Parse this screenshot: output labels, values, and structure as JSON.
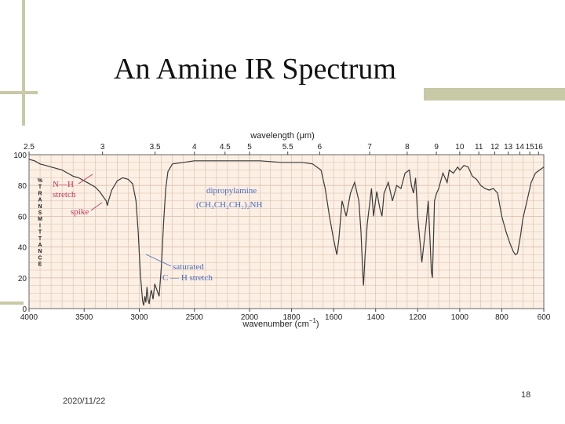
{
  "slide": {
    "title": "An Amine IR Spectrum",
    "date": "2020/11/22",
    "page_number": "18"
  },
  "colors": {
    "background": "#ffffff",
    "decoration": "#c8c9a6",
    "plot_background": "#fcefe4",
    "grid": "#d8bfae",
    "spectrum": "#3a3a3a",
    "annotation_pink": "#c0345a",
    "annotation_blue": "#4b6bbf"
  },
  "chart_data": {
    "type": "line",
    "title": "",
    "xlabel": "wavenumber (cm",
    "xlabel_superscript": "−1",
    "xlabel_close": ")",
    "top_axis_label": "wavelength (μm)",
    "ylabel": "%TRANSMITTANCE",
    "ylim": [
      0,
      100
    ],
    "xlim": [
      4000,
      600
    ],
    "x_scale": "IR split scale (compressed below 2000 cm-1)",
    "grid": true,
    "x_ticks": [
      4000,
      3500,
      3000,
      2500,
      2000,
      1800,
      1600,
      1400,
      1200,
      1000,
      800,
      600
    ],
    "x_tick_labels": [
      "4000",
      "3500",
      "3000",
      "2500",
      "2000",
      "1800",
      "1600",
      "1400",
      "1200",
      "1000",
      "800",
      "600"
    ],
    "y_ticks": [
      0,
      20,
      40,
      60,
      80,
      100
    ],
    "y_tick_labels": [
      "0",
      "20",
      "40",
      "60",
      "80",
      "100"
    ],
    "top_ticks_um": [
      2.5,
      3,
      3.5,
      4,
      4.5,
      5,
      5.5,
      6,
      7,
      8,
      9,
      10,
      11,
      12,
      13,
      14,
      15,
      16
    ],
    "top_tick_labels": [
      "2.5",
      "3",
      "3.5",
      "4",
      "4.5",
      "5",
      "5.5",
      "6",
      "7",
      "8",
      "9",
      "10",
      "11",
      "12",
      "13",
      "14",
      "15",
      "16"
    ],
    "series": [
      {
        "points": [
          [
            4000,
            97
          ],
          [
            3950,
            96
          ],
          [
            3900,
            94
          ],
          [
            3850,
            93
          ],
          [
            3800,
            92
          ],
          [
            3750,
            91
          ],
          [
            3700,
            90
          ],
          [
            3650,
            88
          ],
          [
            3600,
            86
          ],
          [
            3550,
            85
          ],
          [
            3500,
            83
          ],
          [
            3450,
            81
          ],
          [
            3400,
            79
          ],
          [
            3360,
            76
          ],
          [
            3330,
            73
          ],
          [
            3300,
            70
          ],
          [
            3290,
            67
          ],
          [
            3280,
            70
          ],
          [
            3250,
            77
          ],
          [
            3200,
            83
          ],
          [
            3150,
            85
          ],
          [
            3100,
            84
          ],
          [
            3060,
            81
          ],
          [
            3030,
            70
          ],
          [
            3010,
            50
          ],
          [
            2990,
            22
          ],
          [
            2970,
            5
          ],
          [
            2960,
            2
          ],
          [
            2950,
            8
          ],
          [
            2940,
            4
          ],
          [
            2930,
            14
          ],
          [
            2920,
            6
          ],
          [
            2910,
            3
          ],
          [
            2900,
            9
          ],
          [
            2890,
            12
          ],
          [
            2875,
            6
          ],
          [
            2860,
            16
          ],
          [
            2840,
            12
          ],
          [
            2820,
            8
          ],
          [
            2800,
            27
          ],
          [
            2780,
            55
          ],
          [
            2760,
            78
          ],
          [
            2740,
            89
          ],
          [
            2700,
            94
          ],
          [
            2600,
            95
          ],
          [
            2500,
            96
          ],
          [
            2400,
            96
          ],
          [
            2300,
            96
          ],
          [
            2200,
            96
          ],
          [
            2100,
            96
          ],
          [
            2000,
            96
          ],
          [
            1950,
            96
          ],
          [
            1900,
            95.5
          ],
          [
            1850,
            95
          ],
          [
            1800,
            95
          ],
          [
            1750,
            95
          ],
          [
            1700,
            94
          ],
          [
            1660,
            90
          ],
          [
            1640,
            78
          ],
          [
            1620,
            60
          ],
          [
            1600,
            45
          ],
          [
            1585,
            35
          ],
          [
            1575,
            45
          ],
          [
            1560,
            70
          ],
          [
            1540,
            60
          ],
          [
            1520,
            75
          ],
          [
            1500,
            82
          ],
          [
            1480,
            70
          ],
          [
            1470,
            50
          ],
          [
            1462,
            25
          ],
          [
            1458,
            15
          ],
          [
            1450,
            35
          ],
          [
            1440,
            55
          ],
          [
            1420,
            78
          ],
          [
            1410,
            60
          ],
          [
            1395,
            76
          ],
          [
            1380,
            65
          ],
          [
            1370,
            60
          ],
          [
            1360,
            75
          ],
          [
            1340,
            82
          ],
          [
            1320,
            70
          ],
          [
            1300,
            80
          ],
          [
            1280,
            78
          ],
          [
            1260,
            88
          ],
          [
            1240,
            90
          ],
          [
            1230,
            80
          ],
          [
            1220,
            75
          ],
          [
            1210,
            85
          ],
          [
            1200,
            60
          ],
          [
            1180,
            30
          ],
          [
            1160,
            55
          ],
          [
            1150,
            70
          ],
          [
            1140,
            40
          ],
          [
            1135,
            24
          ],
          [
            1130,
            20
          ],
          [
            1125,
            45
          ],
          [
            1120,
            70
          ],
          [
            1110,
            75
          ],
          [
            1100,
            78
          ],
          [
            1080,
            88
          ],
          [
            1060,
            82
          ],
          [
            1050,
            90
          ],
          [
            1030,
            88
          ],
          [
            1010,
            92
          ],
          [
            1000,
            90
          ],
          [
            980,
            93
          ],
          [
            960,
            92
          ],
          [
            940,
            86
          ],
          [
            920,
            84
          ],
          [
            900,
            80
          ],
          [
            880,
            78
          ],
          [
            860,
            77
          ],
          [
            840,
            78
          ],
          [
            820,
            75
          ],
          [
            800,
            60
          ],
          [
            780,
            50
          ],
          [
            760,
            42
          ],
          [
            745,
            37
          ],
          [
            735,
            35
          ],
          [
            725,
            36
          ],
          [
            710,
            48
          ],
          [
            700,
            58
          ],
          [
            680,
            70
          ],
          [
            660,
            82
          ],
          [
            640,
            88
          ],
          [
            620,
            90
          ],
          [
            600,
            92
          ]
        ]
      }
    ],
    "annotations": [
      {
        "lines": [
          "N—H",
          "stretch"
        ],
        "color": "pink"
      },
      {
        "lines": [
          "spike"
        ],
        "color": "pink"
      },
      {
        "lines": [
          "dipropylamine",
          "(CH₃CH₂CH₂)₂NH"
        ],
        "color": "blue"
      },
      {
        "lines": [
          "saturated",
          "C — H stretch"
        ],
        "color": "blue"
      }
    ]
  }
}
